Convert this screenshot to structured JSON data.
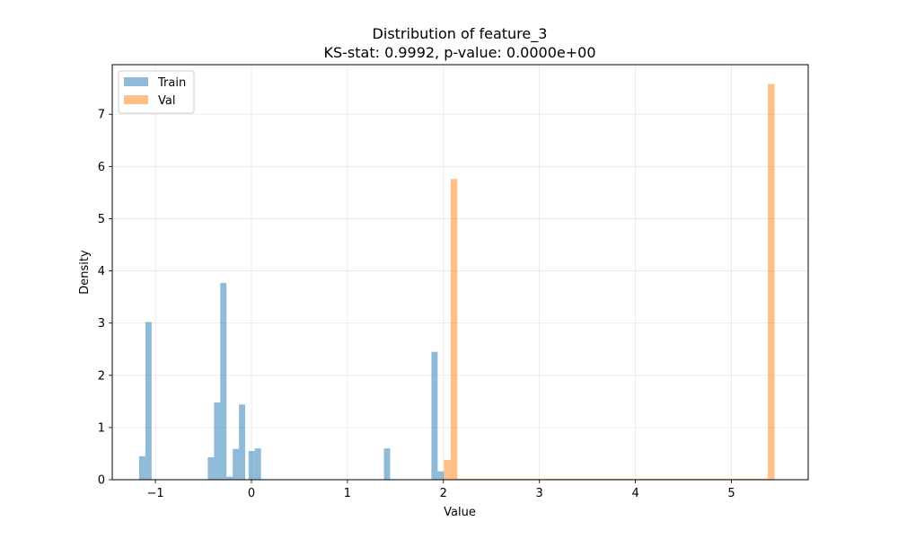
{
  "chart_data": {
    "type": "histogram",
    "title": "Distribution of feature_3",
    "subtitle": "KS-stat: 0.9992, p-value: 0.0000e+00",
    "xlabel": "Value",
    "ylabel": "Density",
    "xlim": [
      -1.45,
      5.8
    ],
    "ylim": [
      0,
      7.95
    ],
    "xticks": [
      -1,
      0,
      1,
      2,
      3,
      4,
      5
    ],
    "xtick_labels": [
      "−1",
      "0",
      "1",
      "2",
      "3",
      "4",
      "5"
    ],
    "yticks": [
      0,
      1,
      2,
      3,
      4,
      5,
      6,
      7
    ],
    "ytick_labels": [
      "0",
      "1",
      "2",
      "3",
      "4",
      "5",
      "6",
      "7"
    ],
    "grid": true,
    "legend_position": "top-left",
    "series": [
      {
        "name": "Train",
        "color": "#1f77b4",
        "opacity": 0.5,
        "bins": [
          {
            "x0": -1.17,
            "x1": -1.105,
            "y": 0.45
          },
          {
            "x0": -1.105,
            "x1": -1.04,
            "y": 3.02
          },
          {
            "x0": -0.455,
            "x1": -0.39,
            "y": 0.43
          },
          {
            "x0": -0.39,
            "x1": -0.325,
            "y": 1.48
          },
          {
            "x0": -0.325,
            "x1": -0.26,
            "y": 3.77
          },
          {
            "x0": -0.26,
            "x1": -0.195,
            "y": 0.06
          },
          {
            "x0": -0.195,
            "x1": -0.13,
            "y": 0.59
          },
          {
            "x0": -0.13,
            "x1": -0.065,
            "y": 1.44
          },
          {
            "x0": -0.03,
            "x1": 0.035,
            "y": 0.55
          },
          {
            "x0": 0.035,
            "x1": 0.1,
            "y": 0.6
          },
          {
            "x0": 1.38,
            "x1": 1.445,
            "y": 0.6
          },
          {
            "x0": 1.875,
            "x1": 1.94,
            "y": 2.45
          },
          {
            "x0": 1.94,
            "x1": 2.005,
            "y": 0.16
          }
        ]
      },
      {
        "name": "Val",
        "color": "#ff7f0e",
        "opacity": 0.5,
        "bins": [
          {
            "x0": 2.005,
            "x1": 2.075,
            "y": 0.38
          },
          {
            "x0": 2.075,
            "x1": 2.145,
            "y": 5.76
          },
          {
            "x0": 2.145,
            "x1": 5.38,
            "y": 0.02
          },
          {
            "x0": 5.38,
            "x1": 5.45,
            "y": 7.58
          }
        ]
      }
    ]
  }
}
